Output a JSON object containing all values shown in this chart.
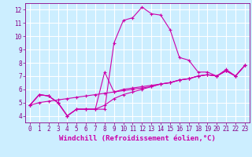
{
  "xlabel": "Windchill (Refroidissement éolien,°C)",
  "background_color": "#cceeff",
  "grid_color": "#ffffff",
  "line_color": "#cc00aa",
  "xlim": [
    -0.5,
    23.5
  ],
  "ylim": [
    3.5,
    12.5
  ],
  "xticks": [
    0,
    1,
    2,
    3,
    4,
    5,
    6,
    7,
    8,
    9,
    10,
    11,
    12,
    13,
    14,
    15,
    16,
    17,
    18,
    19,
    20,
    21,
    22,
    23
  ],
  "yticks": [
    4,
    5,
    6,
    7,
    8,
    9,
    10,
    11,
    12
  ],
  "curve1_x": [
    0,
    1,
    2,
    3,
    4,
    5,
    6,
    7,
    8,
    9,
    10,
    11,
    12,
    13,
    14,
    15,
    16,
    17,
    18,
    19,
    20,
    21,
    22,
    23
  ],
  "curve1_y": [
    4.8,
    5.6,
    5.5,
    5.0,
    4.0,
    4.5,
    4.5,
    4.5,
    4.5,
    9.5,
    11.2,
    11.4,
    12.2,
    11.7,
    11.6,
    10.5,
    8.4,
    8.2,
    7.3,
    7.3,
    7.0,
    7.5,
    7.0,
    7.8
  ],
  "curve2_x": [
    0,
    1,
    2,
    3,
    4,
    5,
    6,
    7,
    8,
    9,
    10,
    11,
    12,
    13,
    14,
    15,
    16,
    17,
    18,
    19,
    20,
    21,
    22,
    23
  ],
  "curve2_y": [
    4.8,
    5.6,
    5.5,
    5.0,
    4.0,
    4.5,
    4.5,
    4.5,
    7.3,
    5.8,
    5.9,
    6.0,
    6.1,
    6.2,
    6.4,
    6.5,
    6.7,
    6.8,
    7.0,
    7.1,
    7.0,
    7.4,
    7.0,
    7.8
  ],
  "curve3_x": [
    0,
    1,
    2,
    3,
    4,
    5,
    6,
    7,
    8,
    9,
    10,
    11,
    12,
    13,
    14,
    15,
    16,
    17,
    18,
    19,
    20,
    21,
    22,
    23
  ],
  "curve3_y": [
    4.8,
    5.6,
    5.5,
    5.0,
    4.0,
    4.5,
    4.5,
    4.5,
    4.8,
    5.3,
    5.6,
    5.8,
    6.0,
    6.2,
    6.4,
    6.5,
    6.7,
    6.8,
    7.0,
    7.1,
    7.0,
    7.4,
    7.0,
    7.8
  ],
  "curve4_x": [
    0,
    1,
    2,
    3,
    4,
    5,
    6,
    7,
    8,
    9,
    10,
    11,
    12,
    13,
    14,
    15,
    16,
    17,
    18,
    19,
    20,
    21,
    22,
    23
  ],
  "curve4_y": [
    4.8,
    5.0,
    5.1,
    5.2,
    5.3,
    5.4,
    5.5,
    5.6,
    5.7,
    5.8,
    6.0,
    6.1,
    6.2,
    6.3,
    6.4,
    6.5,
    6.7,
    6.8,
    7.0,
    7.1,
    7.0,
    7.4,
    7.0,
    7.8
  ],
  "marker": "+",
  "markersize": 3,
  "linewidth": 0.8,
  "xlabel_fontsize": 6.5,
  "tick_fontsize": 5.5
}
